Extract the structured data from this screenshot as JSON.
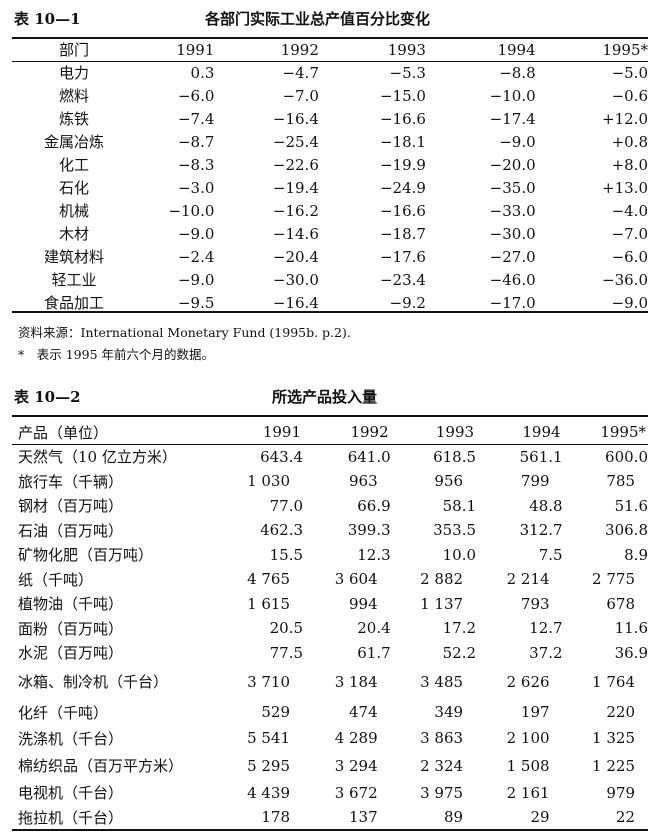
{
  "table1": {
    "label": "表 10—1",
    "title": "各部门实际工业总产值百分比变化",
    "headers": [
      "部门",
      "1991",
      "1992",
      "1993",
      "1994",
      "1995*"
    ],
    "rows": [
      [
        "电力",
        "0.3",
        "−4.7",
        "−5.3",
        "−8.8",
        "−5.0"
      ],
      [
        "燃料",
        "−6.0",
        "−7.0",
        "−15.0",
        "−10.0",
        "−0.6"
      ],
      [
        "炼铁",
        "−7.4",
        "−16.4",
        "−16.6",
        "−17.4",
        "+12.0"
      ],
      [
        "金属冶炼",
        "−8.7",
        "−25.4",
        "−18.1",
        "−9.0",
        "+0.8"
      ],
      [
        "化工",
        "−8.3",
        "−22.6",
        "−19.9",
        "−20.0",
        "+8.0"
      ],
      [
        "石化",
        "−3.0",
        "−19.4",
        "−24.9",
        "−35.0",
        "+13.0"
      ],
      [
        "机械",
        "−10.0",
        "−16.2",
        "−16.6",
        "−33.0",
        "−4.0"
      ],
      [
        "木材",
        "−9.0",
        "−14.6",
        "−18.7",
        "−30.0",
        "−7.0"
      ],
      [
        "建筑材料",
        "−2.4",
        "−20.4",
        "−17.6",
        "−27.0",
        "−6.0"
      ],
      [
        "轻工业",
        "−9.0",
        "−30.0",
        "−23.4",
        "−46.0",
        "−36.0"
      ],
      [
        "食品加工",
        "−9.5",
        "−16.4",
        "−9.2",
        "−17.0",
        "−9.0"
      ]
    ],
    "source": "资料来源：International Monetary Fund (1995b. p.2).",
    "footnote": "*　表示 1995 年前六个月的数据。"
  },
  "table2": {
    "label": "表 10—2",
    "title": "所选产品投入量",
    "headers": [
      "产品（单位）",
      "1991",
      "1992",
      "1993",
      "1994",
      "1995*"
    ],
    "rows": [
      [
        "天然气（10 亿立方米）",
        "643.4",
        "641.0",
        "618.5",
        "561.1",
        "600.0"
      ],
      [
        "旅行车（千辆）",
        "1 030",
        "963",
        "956",
        "799",
        "785"
      ],
      [
        "钢材（百万吨）",
        "77.0",
        "66.9",
        "58.1",
        "48.8",
        "51.6"
      ],
      [
        "石油（百万吨）",
        "462.3",
        "399.3",
        "353.5",
        "312.7",
        "306.8"
      ],
      [
        "矿物化肥（百万吨）",
        "15.5",
        "12.3",
        "10.0",
        "7.5",
        "8.9"
      ],
      [
        "纸（千吨）",
        "4 765",
        "3 604",
        "2 882",
        "2 214",
        "2 775"
      ],
      [
        "植物油（千吨）",
        "1 615",
        "994",
        "1 137",
        "793",
        "678"
      ],
      [
        "面粉（百万吨）",
        "20.5",
        "20.4",
        "17.2",
        "12.7",
        "11.6"
      ],
      [
        "水泥（百万吨）",
        "77.5",
        "61.7",
        "52.2",
        "37.2",
        "36.9"
      ],
      [
        "冰箱、制冷机（千台）",
        "3 710",
        "3 184",
        "3 485",
        "2 626",
        "1 764"
      ],
      [
        "化纤（千吨）",
        "529",
        "474",
        "349",
        "197",
        "220"
      ],
      [
        "洗涤机（千台）",
        "5 541",
        "4 289",
        "3 863",
        "2 100",
        "1 325"
      ],
      [
        "棉纺织品（百万平方米）",
        "5 295",
        "3 294",
        "2 324",
        "1 508",
        "1 225"
      ],
      [
        "电视机（千台）",
        "4 439",
        "3 672",
        "3 975",
        "2 161",
        "979"
      ],
      [
        "拖拉机（千台）",
        "178",
        "137",
        "89",
        "29",
        "22"
      ]
    ]
  }
}
